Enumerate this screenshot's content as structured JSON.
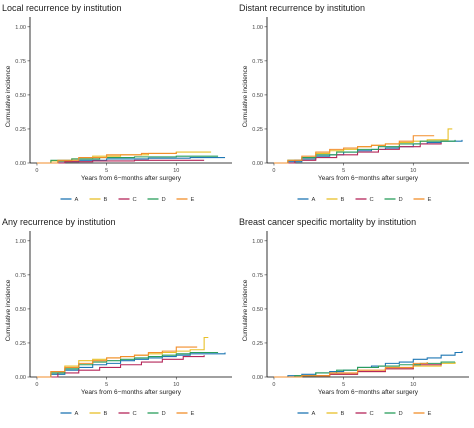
{
  "legend_keys": [
    "A",
    "B",
    "C",
    "D",
    "E"
  ],
  "colors": {
    "A": "#1f77b4",
    "B": "#e8c02a",
    "C": "#b5275a",
    "D": "#2a9d5c",
    "E": "#f28e2b"
  },
  "chart_data": [
    {
      "type": "line",
      "title": "Local recurrence by institution",
      "xlabel": "Years from 6−months after surgery",
      "ylabel": "Cumulative incidence",
      "xlim": [
        -0.5,
        14
      ],
      "ylim": [
        0,
        1.05
      ],
      "xticks": [
        "0",
        "5",
        "10"
      ],
      "yticks": [
        "0.00",
        "0.25",
        "0.50",
        "0.75",
        "1.00"
      ],
      "grid": false,
      "legend_position": "bottom",
      "series": [
        {
          "name": "A",
          "x": [
            0,
            1.5,
            3,
            5,
            8,
            11,
            13.5
          ],
          "y": [
            0,
            0.01,
            0.02,
            0.03,
            0.035,
            0.04,
            0.04
          ]
        },
        {
          "name": "B",
          "x": [
            0,
            1,
            2.5,
            4,
            6,
            8,
            10,
            12.5
          ],
          "y": [
            0,
            0.015,
            0.03,
            0.05,
            0.06,
            0.07,
            0.08,
            0.08
          ]
        },
        {
          "name": "C",
          "x": [
            0,
            2,
            4,
            7,
            10,
            12
          ],
          "y": [
            0,
            0.01,
            0.015,
            0.02,
            0.02,
            0.02
          ]
        },
        {
          "name": "D",
          "x": [
            0,
            1,
            2.5,
            4.5,
            7,
            10,
            13
          ],
          "y": [
            0,
            0.02,
            0.03,
            0.04,
            0.045,
            0.05,
            0.05
          ]
        },
        {
          "name": "E",
          "x": [
            0,
            1.5,
            3,
            5,
            7.5,
            10
          ],
          "y": [
            0,
            0.02,
            0.04,
            0.06,
            0.07,
            0.08
          ]
        }
      ]
    },
    {
      "type": "line",
      "title": "Distant recurrence by institution",
      "xlabel": "Years from 6−months after surgery",
      "ylabel": "Cumulative incidence",
      "xlim": [
        -0.5,
        14
      ],
      "ylim": [
        0,
        1.05
      ],
      "xticks": [
        "0",
        "5",
        "10"
      ],
      "yticks": [
        "0.00",
        "0.25",
        "0.50",
        "0.75",
        "1.00"
      ],
      "grid": false,
      "legend_position": "bottom",
      "series": [
        {
          "name": "A",
          "x": [
            0,
            1,
            2,
            3,
            4,
            5,
            6,
            7,
            8,
            9,
            10,
            11,
            12,
            13.5
          ],
          "y": [
            0,
            0.01,
            0.03,
            0.05,
            0.06,
            0.08,
            0.09,
            0.1,
            0.11,
            0.12,
            0.14,
            0.15,
            0.16,
            0.17
          ]
        },
        {
          "name": "B",
          "x": [
            0,
            1,
            2,
            3,
            4,
            5,
            6,
            7,
            8,
            9,
            10,
            11,
            12.5,
            12.5,
            12.8
          ],
          "y": [
            0,
            0.02,
            0.04,
            0.07,
            0.09,
            0.1,
            0.12,
            0.13,
            0.14,
            0.15,
            0.16,
            0.17,
            0.18,
            0.25,
            0.25
          ]
        },
        {
          "name": "C",
          "x": [
            0,
            1.5,
            3,
            4.5,
            6,
            7.5,
            9,
            10.5,
            12
          ],
          "y": [
            0,
            0.02,
            0.04,
            0.06,
            0.08,
            0.1,
            0.12,
            0.14,
            0.15
          ]
        },
        {
          "name": "D",
          "x": [
            0,
            1,
            2,
            3,
            4.5,
            6,
            7.5,
            9,
            10.5,
            13
          ],
          "y": [
            0,
            0.02,
            0.04,
            0.06,
            0.08,
            0.1,
            0.12,
            0.14,
            0.16,
            0.17
          ]
        },
        {
          "name": "E",
          "x": [
            0,
            1,
            2,
            3,
            4,
            5,
            6,
            7,
            8,
            9,
            10,
            11,
            11.5
          ],
          "y": [
            0,
            0.02,
            0.05,
            0.08,
            0.1,
            0.11,
            0.12,
            0.13,
            0.14,
            0.16,
            0.2,
            0.2,
            0.2
          ]
        }
      ]
    },
    {
      "type": "line",
      "title": "Any recurrence by institution",
      "xlabel": "Years from 6−months after surgery",
      "ylabel": "Cumulative incidence",
      "xlim": [
        -0.5,
        14
      ],
      "ylim": [
        0,
        1.05
      ],
      "xticks": [
        "0",
        "5",
        "10"
      ],
      "yticks": [
        "0.00",
        "0.25",
        "0.50",
        "0.75",
        "1.00"
      ],
      "grid": false,
      "legend_position": "bottom",
      "series": [
        {
          "name": "A",
          "x": [
            0,
            1,
            2,
            3,
            4,
            5,
            6,
            7,
            8,
            9,
            10,
            11,
            13.5
          ],
          "y": [
            0,
            0.02,
            0.05,
            0.07,
            0.09,
            0.1,
            0.12,
            0.13,
            0.14,
            0.15,
            0.16,
            0.17,
            0.18
          ]
        },
        {
          "name": "B",
          "x": [
            0,
            1,
            2,
            3,
            4,
            5,
            6,
            7,
            8,
            9,
            10,
            11,
            12,
            12,
            12.3
          ],
          "y": [
            0,
            0.04,
            0.08,
            0.12,
            0.13,
            0.14,
            0.15,
            0.16,
            0.17,
            0.18,
            0.19,
            0.2,
            0.2,
            0.29,
            0.29
          ]
        },
        {
          "name": "C",
          "x": [
            0,
            1.5,
            3,
            4.5,
            6,
            7.5,
            9,
            10.5,
            12
          ],
          "y": [
            0,
            0.03,
            0.05,
            0.07,
            0.09,
            0.11,
            0.13,
            0.15,
            0.16
          ]
        },
        {
          "name": "D",
          "x": [
            0,
            1,
            2,
            3,
            4,
            5,
            6,
            7,
            8,
            9,
            10,
            11,
            13
          ],
          "y": [
            0,
            0.03,
            0.06,
            0.09,
            0.11,
            0.12,
            0.13,
            0.14,
            0.15,
            0.16,
            0.17,
            0.18,
            0.18
          ]
        },
        {
          "name": "E",
          "x": [
            0,
            1,
            2,
            3,
            4,
            5,
            6,
            7,
            8,
            9,
            10,
            11,
            11.5
          ],
          "y": [
            0,
            0.04,
            0.07,
            0.1,
            0.12,
            0.14,
            0.15,
            0.16,
            0.18,
            0.19,
            0.22,
            0.22,
            0.22
          ]
        }
      ]
    },
    {
      "type": "line",
      "title": "Breast cancer specific mortality by institution",
      "xlabel": "Years from 6−months after surgery",
      "ylabel": "Cumulative incidence",
      "xlim": [
        -0.5,
        14
      ],
      "ylim": [
        0,
        1.05
      ],
      "xticks": [
        "0",
        "5",
        "10"
      ],
      "yticks": [
        "0.00",
        "0.25",
        "0.50",
        "0.75",
        "1.00"
      ],
      "grid": false,
      "legend_position": "bottom",
      "series": [
        {
          "name": "A",
          "x": [
            0,
            1,
            2,
            3,
            4,
            5,
            6,
            7,
            8,
            9,
            10,
            11,
            12,
            13,
            13.5
          ],
          "y": [
            0,
            0.01,
            0.02,
            0.03,
            0.04,
            0.05,
            0.07,
            0.08,
            0.1,
            0.11,
            0.13,
            0.14,
            0.16,
            0.18,
            0.19
          ]
        },
        {
          "name": "B",
          "x": [
            0,
            2,
            4,
            6,
            8,
            10,
            12,
            13
          ],
          "y": [
            0,
            0.01,
            0.02,
            0.04,
            0.06,
            0.08,
            0.1,
            0.11
          ]
        },
        {
          "name": "C",
          "x": [
            0,
            2,
            4,
            6,
            8,
            10,
            12
          ],
          "y": [
            0,
            0.01,
            0.02,
            0.04,
            0.06,
            0.09,
            0.11
          ]
        },
        {
          "name": "D",
          "x": [
            0,
            1.5,
            3,
            4.5,
            6,
            7.5,
            9,
            10.5,
            12,
            13
          ],
          "y": [
            0,
            0.01,
            0.03,
            0.05,
            0.07,
            0.08,
            0.09,
            0.1,
            0.11,
            0.11
          ]
        },
        {
          "name": "E",
          "x": [
            0,
            2,
            4,
            6,
            8,
            10,
            11
          ],
          "y": [
            0,
            0.01,
            0.03,
            0.05,
            0.07,
            0.1,
            0.11
          ]
        }
      ]
    }
  ]
}
